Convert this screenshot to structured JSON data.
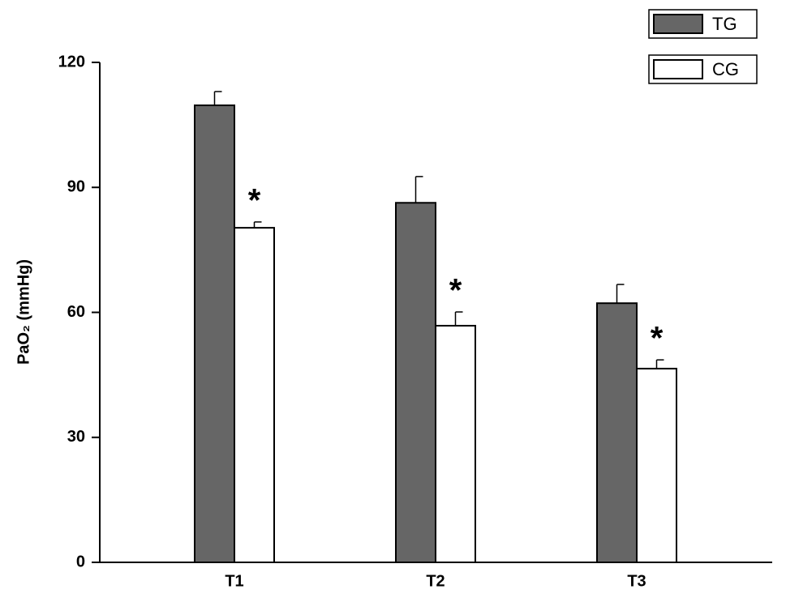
{
  "chart_data": {
    "type": "bar",
    "y_label": "PaO₂ (mmHg)",
    "categories": [
      "T1",
      "T2",
      "T3"
    ],
    "series": [
      {
        "name": "TG",
        "color": "#666666",
        "values": [
          109.7,
          86.3,
          62.2
        ],
        "errors": [
          3.3,
          6.3,
          4.5
        ]
      },
      {
        "name": "CG",
        "color": "#ffffff",
        "values": [
          80.3,
          56.8,
          46.5
        ],
        "errors": [
          1.4,
          3.3,
          2.1
        ],
        "annotations": [
          "*",
          "*",
          "*"
        ]
      }
    ],
    "ylim": [
      0,
      120
    ],
    "yticks": [
      0,
      30,
      60,
      90,
      120
    ],
    "legend": "upper right"
  }
}
